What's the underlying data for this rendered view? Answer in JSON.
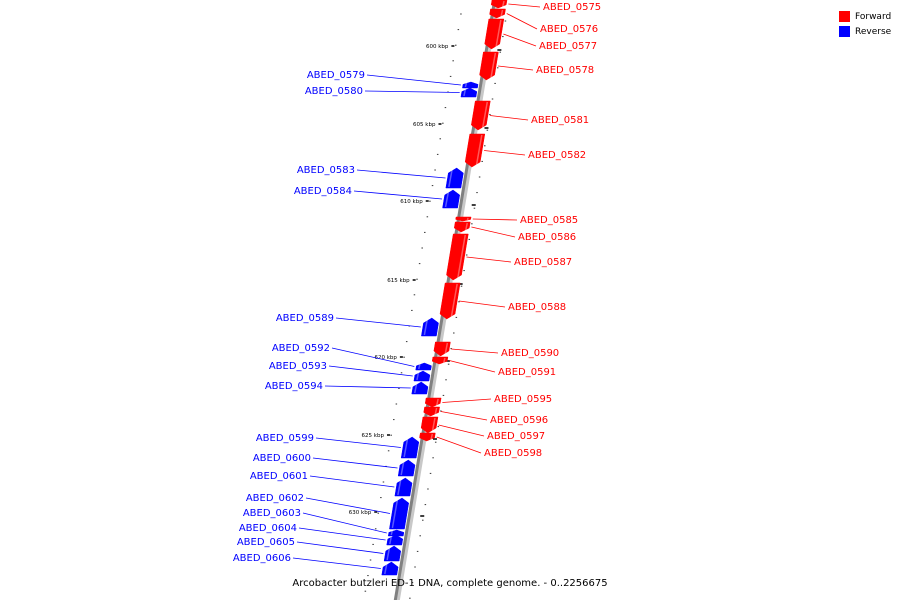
{
  "legend": [
    {
      "label": "Forward",
      "color": "#ff0000"
    },
    {
      "label": "Reverse",
      "color": "#0000ff"
    }
  ],
  "caption": "Arcobacter butzleri ED-1 DNA, complete genome. - 0..2256675",
  "colors": {
    "forward": "#ff0000",
    "reverse": "#0000ff",
    "backbone": "#808080"
  },
  "scale_ticks": [
    {
      "label": "600 kbp"
    },
    {
      "label": "605 kbp"
    },
    {
      "label": "610 kbp"
    },
    {
      "label": "615 kbp"
    },
    {
      "label": "620 kbp"
    },
    {
      "label": "625 kbp"
    },
    {
      "label": "630 kbp"
    }
  ],
  "genes": [
    {
      "name": "ABED_0575",
      "strand": "forward"
    },
    {
      "name": "ABED_0576",
      "strand": "forward"
    },
    {
      "name": "ABED_0577",
      "strand": "forward"
    },
    {
      "name": "ABED_0578",
      "strand": "forward"
    },
    {
      "name": "ABED_0579",
      "strand": "reverse"
    },
    {
      "name": "ABED_0580",
      "strand": "reverse"
    },
    {
      "name": "ABED_0581",
      "strand": "forward"
    },
    {
      "name": "ABED_0582",
      "strand": "forward"
    },
    {
      "name": "ABED_0583",
      "strand": "reverse"
    },
    {
      "name": "ABED_0584",
      "strand": "reverse"
    },
    {
      "name": "ABED_0585",
      "strand": "forward"
    },
    {
      "name": "ABED_0586",
      "strand": "forward"
    },
    {
      "name": "ABED_0587",
      "strand": "forward"
    },
    {
      "name": "ABED_0588",
      "strand": "forward"
    },
    {
      "name": "ABED_0589",
      "strand": "reverse"
    },
    {
      "name": "ABED_0590",
      "strand": "forward"
    },
    {
      "name": "ABED_0591",
      "strand": "forward"
    },
    {
      "name": "ABED_0592",
      "strand": "reverse"
    },
    {
      "name": "ABED_0593",
      "strand": "reverse"
    },
    {
      "name": "ABED_0594",
      "strand": "reverse"
    },
    {
      "name": "ABED_0595",
      "strand": "forward"
    },
    {
      "name": "ABED_0596",
      "strand": "forward"
    },
    {
      "name": "ABED_0597",
      "strand": "forward"
    },
    {
      "name": "ABED_0598",
      "strand": "forward"
    },
    {
      "name": "ABED_0599",
      "strand": "reverse"
    },
    {
      "name": "ABED_0600",
      "strand": "reverse"
    },
    {
      "name": "ABED_0601",
      "strand": "reverse"
    },
    {
      "name": "ABED_0602",
      "strand": "reverse"
    },
    {
      "name": "ABED_0603",
      "strand": "reverse"
    },
    {
      "name": "ABED_0604",
      "strand": "reverse"
    },
    {
      "name": "ABED_0605",
      "strand": "reverse"
    },
    {
      "name": "ABED_0606",
      "strand": "reverse"
    }
  ]
}
